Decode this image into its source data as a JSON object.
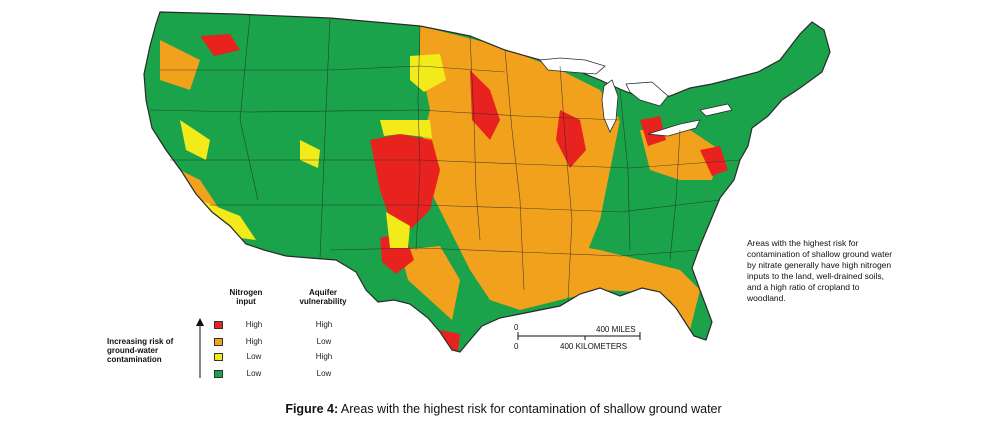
{
  "colors": {
    "high_high": "#e8231f",
    "high_low": "#f2a11c",
    "low_high": "#f2ea19",
    "low_low": "#1aa34a",
    "state_line": "#2a2a2a",
    "water": "#ffffff"
  },
  "legend": {
    "col_nitrogen": "Nitrogen input",
    "col_aquifer": "Aquifer vulnerability",
    "risk_axis_label": "Increasing risk of ground-water contamination",
    "rows": [
      {
        "nitrogen": "High",
        "aquifer": "High",
        "color_key": "high_high"
      },
      {
        "nitrogen": "High",
        "aquifer": "Low",
        "color_key": "high_low"
      },
      {
        "nitrogen": "Low",
        "aquifer": "High",
        "color_key": "low_high"
      },
      {
        "nitrogen": "Low",
        "aquifer": "Low",
        "color_key": "low_low"
      }
    ]
  },
  "scale": {
    "zero_top": "0",
    "zero_bottom": "0",
    "miles": "400 MILES",
    "kilometers": "400 KILOMETERS"
  },
  "note": "Areas with the highest risk for contamination of shallow ground water by nitrate generally have high nitrogen inputs to the land, well-drained soils, and a high ratio of cropland to woodland.",
  "caption": {
    "label": "Figure 4:",
    "text": "Areas with the highest risk for contamination of shallow ground water"
  }
}
